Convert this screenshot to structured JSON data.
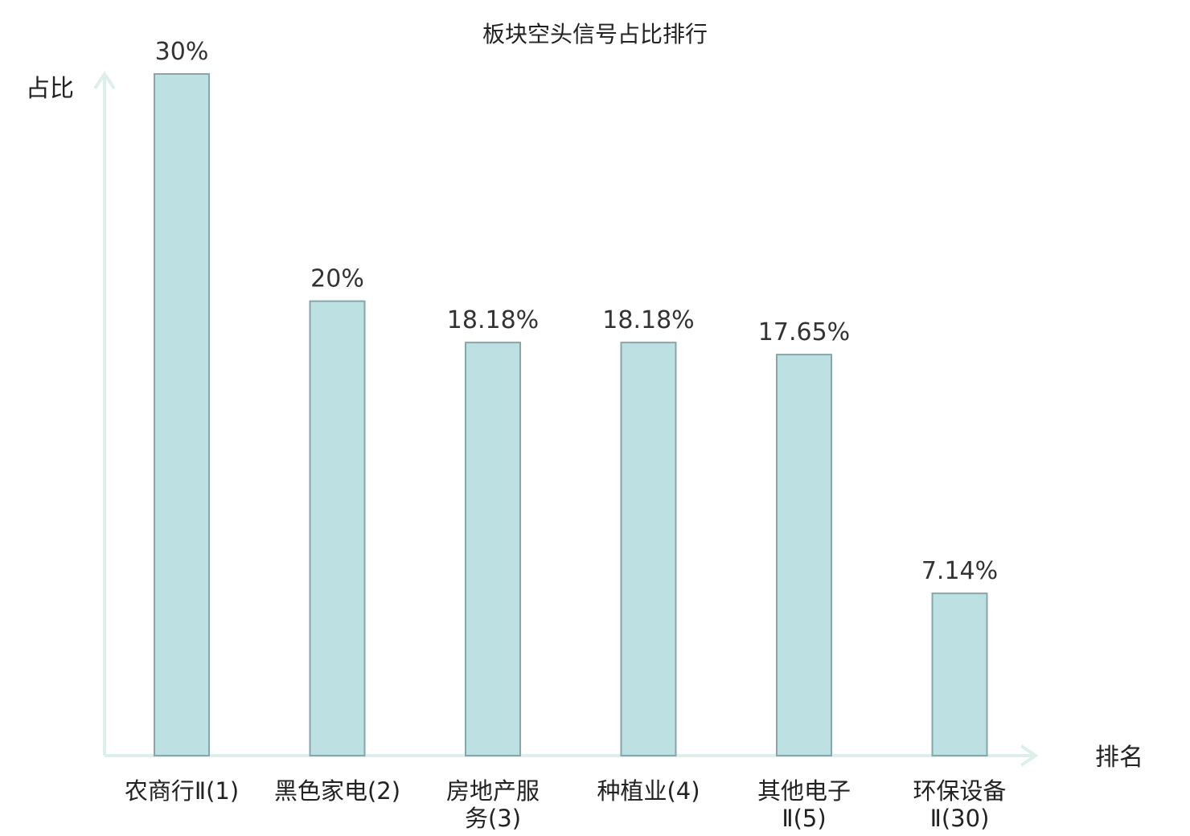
{
  "chart_data": {
    "type": "bar",
    "title": "板块空头信号占比排行",
    "ylabel": "占比",
    "xlabel": "排名",
    "ylim": [
      0,
      30
    ],
    "grid": false,
    "categories": [
      {
        "lines": [
          "农商行Ⅱ(1)"
        ],
        "highlight": false
      },
      {
        "lines": [
          "黑色家电(2)"
        ],
        "highlight": false
      },
      {
        "lines": [
          "房地产服",
          "务(3)"
        ],
        "highlight": false
      },
      {
        "lines": [
          "种植业(4)"
        ],
        "highlight": false
      },
      {
        "lines": [
          "其他电子",
          "Ⅱ(5)"
        ],
        "highlight": false
      },
      {
        "lines": [
          "环保设备",
          "Ⅱ(30)"
        ],
        "highlight": true
      }
    ],
    "values": [
      30,
      20,
      18.18,
      18.18,
      17.65,
      7.14
    ],
    "value_labels": [
      "30%",
      "20%",
      "18.18%",
      "18.18%",
      "17.65%",
      "7.14%"
    ],
    "colors": {
      "bar_fill": "#bde0e3",
      "bar_stroke": "#87a6a9",
      "axis": "#dcefeb",
      "highlight_text": "#e8161b",
      "text": "#222222"
    }
  }
}
